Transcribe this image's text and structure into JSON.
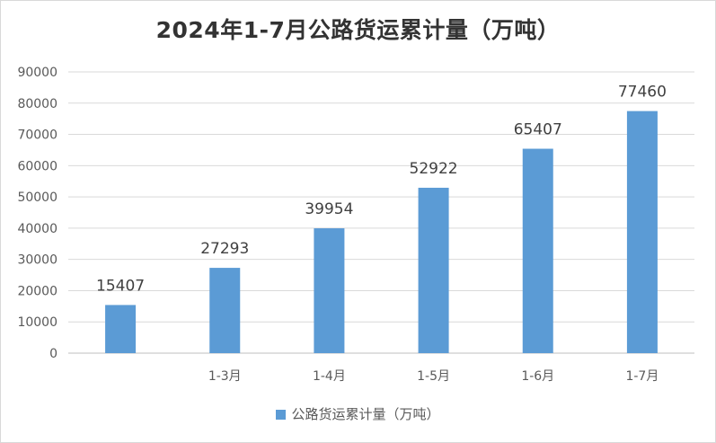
{
  "chart_data": {
    "type": "bar",
    "title": "2024年1-7月公路货运累计量（万吨）",
    "categories": [
      "",
      "1-3月",
      "1-4月",
      "1-5月",
      "1-6月",
      "1-7月"
    ],
    "series": [
      {
        "name": "公路货运累计量（万吨）",
        "values": [
          15407,
          27293,
          39954,
          52922,
          65407,
          77460
        ],
        "color": "#5b9bd5"
      }
    ],
    "data_labels": [
      "15407",
      "27293",
      "39954",
      "52922",
      "65407",
      "77460"
    ],
    "y_ticks": [
      0,
      10000,
      20000,
      30000,
      40000,
      50000,
      60000,
      70000,
      80000,
      90000
    ],
    "ylim": [
      0,
      90000
    ],
    "xlabel": "",
    "ylabel": "",
    "grid": true,
    "legend_position": "bottom"
  }
}
